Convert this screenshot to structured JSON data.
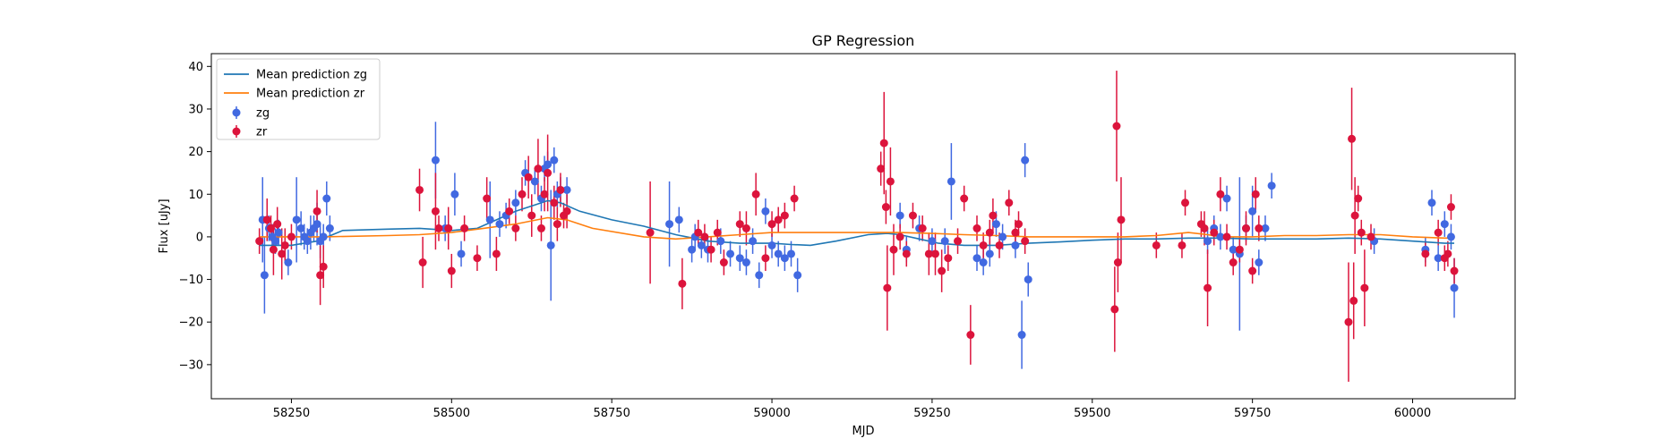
{
  "chart_data": {
    "type": "scatter",
    "title": "GP Regression",
    "xlabel": "MJD",
    "ylabel": "Flux [uJy]",
    "xlim": [
      58125,
      60160
    ],
    "ylim": [
      -38,
      43
    ],
    "xticks": [
      58250,
      58500,
      58750,
      59000,
      59250,
      59500,
      59750,
      60000
    ],
    "yticks": [
      -30,
      -20,
      -10,
      0,
      10,
      20,
      30,
      40
    ],
    "legend_position": "upper left",
    "colors": {
      "mean_zg": "#1f77b4",
      "mean_zr": "#ff7f0e",
      "zg": "#4169e1",
      "zr": "#dc143c"
    },
    "lines": [
      {
        "name": "Mean prediction zg",
        "x": [
          58200,
          58250,
          58290,
          58330,
          58400,
          58450,
          58500,
          58540,
          58570,
          58600,
          58630,
          58650,
          58670,
          58700,
          58750,
          58800,
          58850,
          58900,
          58950,
          58980,
          59000,
          59030,
          59060,
          59100,
          59150,
          59180,
          59200,
          59230,
          59260,
          59300,
          59350,
          59400,
          59450,
          59500,
          59550,
          59600,
          59650,
          59700,
          59750,
          59800,
          59850,
          59900,
          59950,
          60000,
          60050,
          60065
        ],
        "y": [
          -2,
          -2,
          -1,
          1.5,
          1.8,
          2,
          1.5,
          2,
          4,
          6,
          7.5,
          8.5,
          8,
          6,
          4,
          2.5,
          0.5,
          -1,
          -1.5,
          -1.5,
          -1.5,
          -1.8,
          -2,
          -1,
          0.5,
          0.8,
          0.5,
          -0.5,
          -1.5,
          -2,
          -2,
          -1.5,
          -1.2,
          -0.8,
          -0.5,
          -0.5,
          -0.3,
          -0.3,
          -0.5,
          -0.5,
          -0.5,
          -0.3,
          -0.5,
          -1,
          -1.5,
          -1.5
        ]
      },
      {
        "name": "Mean prediction zr",
        "x": [
          58200,
          58250,
          58300,
          58400,
          58450,
          58500,
          58550,
          58600,
          58650,
          58680,
          58720,
          58800,
          58850,
          58900,
          58950,
          59000,
          59050,
          59100,
          59150,
          59180,
          59200,
          59250,
          59300,
          59350,
          59400,
          59450,
          59500,
          59550,
          59600,
          59650,
          59680,
          59700,
          59750,
          59800,
          59850,
          59900,
          59950,
          60000,
          60050,
          60065
        ],
        "y": [
          0,
          0,
          0,
          0.3,
          0.5,
          1,
          2,
          3,
          4.5,
          4,
          2,
          0,
          -0.5,
          0,
          0.5,
          1,
          1,
          1,
          1,
          1,
          1,
          0.8,
          0.5,
          0.3,
          0,
          0,
          0,
          0,
          0.3,
          1,
          0.5,
          0,
          0,
          0.3,
          0.3,
          0.5,
          0.5,
          0,
          -0.3,
          -0.3
        ]
      }
    ],
    "series": [
      {
        "name": "zg",
        "x": [
          58205,
          58208,
          58215,
          58220,
          58225,
          58230,
          58245,
          58258,
          58265,
          58270,
          58275,
          58280,
          58285,
          58290,
          58295,
          58300,
          58305,
          58310,
          58475,
          58490,
          58505,
          58515,
          58560,
          58575,
          58585,
          58600,
          58615,
          58630,
          58640,
          58645,
          58650,
          58655,
          58660,
          58665,
          58670,
          58680,
          58840,
          58855,
          58875,
          58880,
          58890,
          58900,
          58920,
          58935,
          58950,
          58960,
          58970,
          58980,
          58990,
          59000,
          59010,
          59020,
          59030,
          59040,
          59200,
          59210,
          59230,
          59250,
          59270,
          59280,
          59320,
          59330,
          59340,
          59350,
          59360,
          59380,
          59390,
          59395,
          59400,
          59680,
          59690,
          59700,
          59710,
          59720,
          59730,
          59740,
          59750,
          59760,
          59770,
          59780,
          59940,
          60020,
          60030,
          60040,
          60050,
          60060,
          60065
        ],
        "y": [
          4,
          -9,
          2,
          0,
          -1,
          1,
          -6,
          4,
          2,
          0,
          -1,
          1,
          2,
          3,
          -1,
          0,
          9,
          2,
          18,
          2,
          10,
          -4,
          4,
          3,
          5,
          8,
          15,
          13,
          9,
          16,
          17,
          -2,
          18,
          10,
          11,
          11,
          3,
          4,
          -3,
          0,
          -2,
          -3,
          -1,
          -4,
          -5,
          -6,
          -1,
          -9,
          6,
          -2,
          -4,
          -5,
          -4,
          -9,
          5,
          -3,
          2,
          -1,
          -1,
          13,
          -5,
          -6,
          -4,
          3,
          0,
          -2,
          -23,
          18,
          -10,
          -1,
          2,
          0,
          9,
          -3,
          -4,
          2,
          6,
          -6,
          2,
          12,
          -1,
          -3,
          8,
          -5,
          3,
          0,
          -12
        ],
        "err": [
          10,
          9,
          3,
          3,
          3,
          3,
          3,
          10,
          4,
          3,
          3,
          4,
          3,
          5,
          4,
          3,
          4,
          3,
          9,
          3,
          5,
          3,
          9,
          3,
          3,
          3,
          3,
          3,
          3,
          3,
          3,
          13,
          3,
          3,
          3,
          3,
          10,
          3,
          3,
          3,
          3,
          3,
          3,
          3,
          3,
          3,
          3,
          3,
          3,
          3,
          3,
          3,
          3,
          4,
          3,
          3,
          3,
          3,
          3,
          9,
          3,
          3,
          3,
          3,
          3,
          3,
          8,
          4,
          4,
          3,
          3,
          3,
          3,
          3,
          18,
          3,
          6,
          3,
          3,
          3,
          3,
          3,
          3,
          3,
          3,
          3,
          7
        ]
      },
      {
        "name": "zr",
        "x": [
          58200,
          58212,
          58218,
          58222,
          58228,
          58235,
          58240,
          58250,
          58290,
          58295,
          58300,
          58450,
          58455,
          58475,
          58480,
          58495,
          58500,
          58520,
          58540,
          58555,
          58570,
          58590,
          58600,
          58610,
          58620,
          58625,
          58635,
          58640,
          58645,
          58650,
          58660,
          58665,
          58670,
          58675,
          58680,
          58810,
          58860,
          58885,
          58895,
          58905,
          58915,
          58925,
          58950,
          58960,
          58975,
          58990,
          59000,
          59010,
          59020,
          59035,
          59170,
          59175,
          59178,
          59180,
          59185,
          59190,
          59200,
          59210,
          59220,
          59235,
          59245,
          59255,
          59265,
          59275,
          59290,
          59300,
          59310,
          59320,
          59330,
          59340,
          59345,
          59355,
          59370,
          59380,
          59385,
          59395,
          59535,
          59538,
          59540,
          59545,
          59600,
          59640,
          59645,
          59670,
          59675,
          59680,
          59690,
          59700,
          59710,
          59720,
          59730,
          59740,
          59750,
          59755,
          59760,
          59900,
          59905,
          59908,
          59910,
          59915,
          59920,
          59925,
          59935,
          60020,
          60040,
          60050,
          60055,
          60060,
          60065
        ],
        "y": [
          -1,
          4,
          2,
          -3,
          3,
          -4,
          -2,
          0,
          6,
          -9,
          -7,
          11,
          -6,
          6,
          2,
          2,
          -8,
          2,
          -5,
          9,
          -4,
          6,
          2,
          10,
          14,
          5,
          16,
          2,
          10,
          15,
          8,
          3,
          11,
          5,
          6,
          1,
          -11,
          1,
          0,
          -3,
          1,
          -6,
          3,
          2,
          10,
          -5,
          3,
          4,
          5,
          9,
          16,
          22,
          7,
          -12,
          13,
          -3,
          0,
          -4,
          5,
          2,
          -4,
          -4,
          -8,
          -5,
          -1,
          9,
          -23,
          2,
          -2,
          1,
          5,
          -2,
          8,
          1,
          3,
          -1,
          -17,
          26,
          -6,
          4,
          -2,
          -2,
          8,
          3,
          2,
          -12,
          1,
          10,
          0,
          -6,
          -3,
          2,
          -8,
          10,
          2,
          -20,
          23,
          -15,
          5,
          9,
          1,
          -12,
          0,
          -4,
          1,
          -5,
          -4,
          7,
          -8
        ],
        "err": [
          3,
          5,
          3,
          6,
          4,
          6,
          4,
          3,
          5,
          7,
          5,
          5,
          6,
          9,
          3,
          5,
          4,
          3,
          3,
          5,
          4,
          3,
          3,
          4,
          5,
          5,
          7,
          3,
          4,
          9,
          4,
          4,
          4,
          3,
          4,
          12,
          6,
          3,
          3,
          3,
          3,
          3,
          3,
          4,
          5,
          3,
          3,
          3,
          3,
          3,
          4,
          12,
          4,
          10,
          8,
          6,
          3,
          3,
          3,
          3,
          5,
          5,
          5,
          3,
          3,
          3,
          7,
          3,
          3,
          3,
          4,
          3,
          3,
          3,
          3,
          3,
          10,
          13,
          7,
          10,
          3,
          3,
          3,
          3,
          4,
          9,
          3,
          4,
          3,
          3,
          3,
          4,
          3,
          4,
          3,
          14,
          12,
          9,
          9,
          3,
          3,
          9,
          3,
          3,
          3,
          3,
          3,
          3,
          3
        ]
      }
    ]
  }
}
